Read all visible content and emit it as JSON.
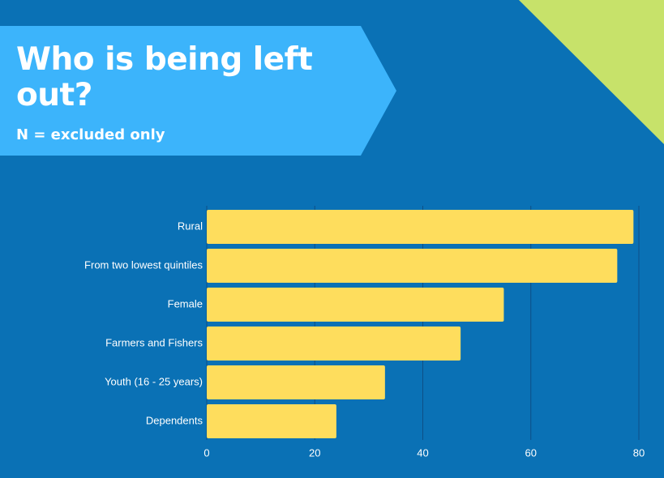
{
  "title": "Who is being left out?",
  "subtitle": "N = excluded only",
  "colors": {
    "background": "#0a71b5",
    "banner": "#3cb4fb",
    "corner": "#c7e26a",
    "bar": "#fedd5d",
    "grid": "#0d4f86"
  },
  "chart_data": {
    "type": "bar",
    "orientation": "horizontal",
    "categories": [
      "Rural",
      "From two lowest quintiles",
      "Female",
      "Farmers and Fishers",
      "Youth (16 - 25 years)",
      "Dependents"
    ],
    "values": [
      79,
      76,
      55,
      47,
      33,
      24
    ],
    "xlim": [
      0,
      80
    ],
    "xticks": [
      0,
      20,
      40,
      60,
      80
    ],
    "grid": true,
    "legend": "none"
  }
}
